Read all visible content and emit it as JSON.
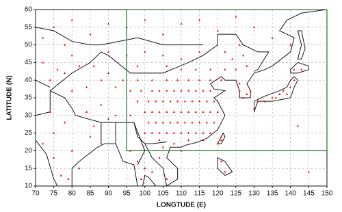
{
  "chart_data": {
    "type": "scatter",
    "x_label": "LONGTUDE (E)",
    "y_label": "LATITUDE (N)",
    "color": "#ff0000",
    "xlim": [
      70,
      150
    ],
    "ylim": [
      10,
      60
    ],
    "xticks": [
      70,
      75,
      80,
      85,
      90,
      95,
      100,
      105,
      110,
      115,
      120,
      125,
      130,
      135,
      140,
      145,
      150
    ],
    "yticks": [
      10,
      15,
      20,
      25,
      30,
      35,
      40,
      45,
      50,
      55,
      60
    ],
    "grid": true,
    "region": {
      "xlim": [
        95,
        150
      ],
      "ylim": [
        20,
        60
      ],
      "color": "#2e7d32"
    },
    "x": [
      100,
      102,
      104,
      106,
      108,
      110,
      112,
      114,
      116,
      118,
      101,
      103,
      105,
      107,
      109,
      111,
      113,
      115,
      117,
      119,
      100,
      102,
      104,
      106,
      108,
      110,
      112,
      114,
      116,
      118,
      120,
      98,
      101,
      103,
      105,
      107,
      109,
      111,
      113,
      115,
      117,
      119,
      96,
      99,
      102,
      104,
      106,
      108,
      110,
      112,
      114,
      116,
      118,
      94,
      98,
      102,
      106,
      109,
      112,
      115,
      118,
      121,
      110,
      114,
      118,
      122,
      125,
      128,
      124,
      127,
      122,
      126,
      104,
      108,
      112,
      116,
      110,
      80,
      84,
      88,
      82,
      86,
      90,
      92,
      88,
      84,
      92,
      96,
      90,
      90,
      95,
      100,
      105,
      110,
      98,
      106,
      115,
      75,
      80,
      85,
      90,
      95,
      100,
      105,
      110,
      115,
      120,
      125,
      130,
      135,
      140,
      72,
      78,
      72,
      76,
      80,
      74,
      78,
      72,
      75,
      78,
      80,
      85,
      82,
      77,
      88,
      75,
      79,
      86,
      74,
      98,
      100,
      102,
      104,
      106,
      105,
      96,
      99,
      122,
      121,
      126,
      127,
      128,
      129,
      126,
      130,
      131,
      133,
      135,
      137,
      139,
      140,
      141,
      141,
      143,
      136,
      138,
      121,
      121,
      145,
      142,
      120
    ],
    "y": [
      25,
      25,
      25,
      25,
      25,
      25,
      25,
      25,
      25,
      25,
      28,
      28,
      28,
      28,
      28,
      28,
      28,
      28,
      28,
      28,
      31,
      31,
      31,
      31,
      31,
      31,
      31,
      31,
      31,
      31,
      31,
      34,
      34,
      34,
      34,
      34,
      34,
      34,
      34,
      34,
      34,
      34,
      37,
      37,
      37,
      37,
      37,
      37,
      37,
      37,
      37,
      37,
      37,
      40,
      40,
      40,
      40,
      40,
      40,
      40,
      40,
      40,
      43,
      43,
      43,
      43,
      43,
      44,
      46,
      47,
      48,
      50,
      23,
      22,
      23,
      23,
      20,
      37,
      38,
      40,
      44,
      44,
      42,
      38,
      33,
      31,
      30,
      30,
      29,
      48,
      47,
      48,
      47,
      46,
      44,
      44,
      48,
      55,
      57,
      53,
      56,
      55,
      57,
      53,
      56,
      57,
      54,
      58,
      55,
      52,
      50,
      52,
      50,
      45,
      43,
      47,
      40,
      42,
      22,
      25,
      28,
      20,
      24,
      15,
      13,
      22,
      18,
      12,
      27,
      31,
      17,
      15,
      14,
      18,
      12,
      21,
      20,
      12,
      14,
      17,
      37,
      35,
      36,
      37,
      39,
      32,
      34,
      34,
      35,
      36,
      36,
      38,
      40,
      43,
      43,
      35,
      37,
      24,
      23,
      14,
      27,
      22
    ]
  }
}
